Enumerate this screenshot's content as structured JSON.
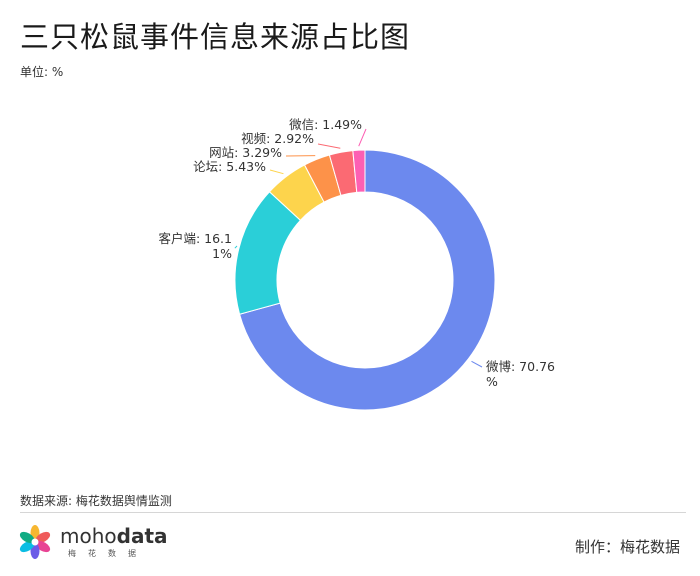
{
  "header": {
    "title": "三只松鼠事件信息来源占比图",
    "unit": "单位: %"
  },
  "chart_data": {
    "type": "pie",
    "variant": "donut",
    "title": "三只松鼠事件信息来源占比图",
    "unit": "%",
    "slices": [
      {
        "label": "微博",
        "value": 70.76,
        "color": "#6c89ee",
        "display": [
          "微博: 70.76",
          "%"
        ]
      },
      {
        "label": "客户端",
        "value": 16.11,
        "color": "#2acfd8",
        "display": [
          "客户端: 16.1",
          "1%"
        ]
      },
      {
        "label": "论坛",
        "value": 5.43,
        "color": "#fdd44c",
        "display": [
          "论坛: 5.43%"
        ]
      },
      {
        "label": "网站",
        "value": 3.29,
        "color": "#fd9249",
        "display": [
          "网站: 3.29%"
        ]
      },
      {
        "label": "视频",
        "value": 2.92,
        "color": "#fb6a73",
        "display": [
          "视频: 2.92%"
        ]
      },
      {
        "label": "微信",
        "value": 1.49,
        "color": "#fd5fb3",
        "display": [
          "微信: 1.49%"
        ]
      }
    ]
  },
  "footer": {
    "source": "数据来源: 梅花数据舆情监测",
    "logo_prefix": "moho",
    "logo_suffix": "data",
    "logo_sub": "梅花数据",
    "credit": "制作：梅花数据"
  }
}
